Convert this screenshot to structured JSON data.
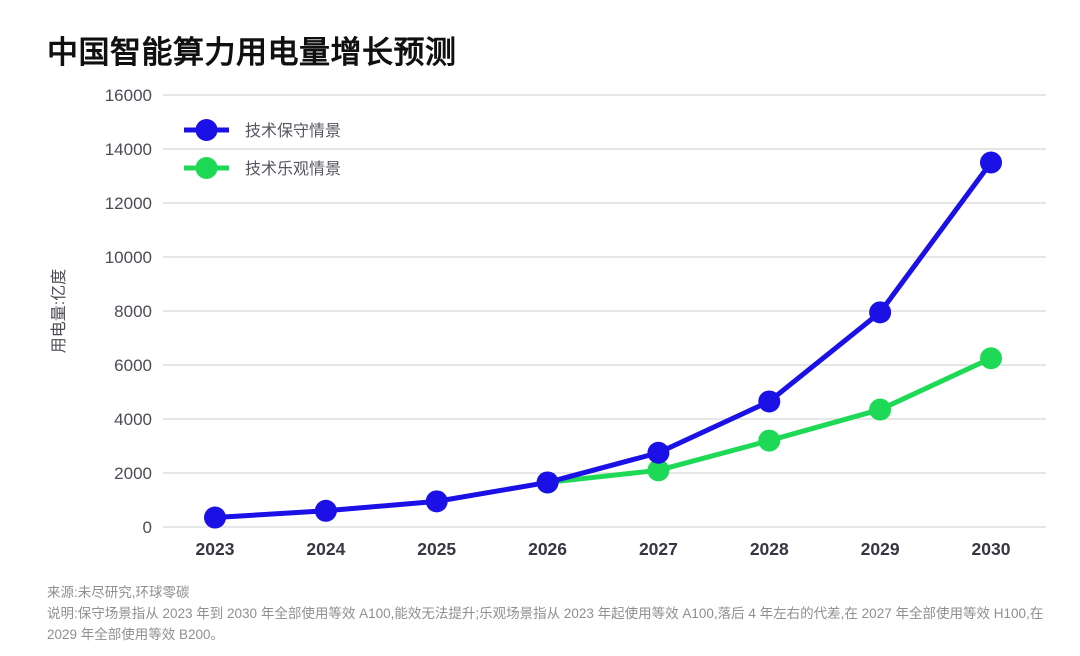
{
  "title": "中国智能算力用电量增长预测",
  "notes": {
    "source": "来源:未尽研究,环球零碳",
    "description": "说明:保守场景指从 2023 年到 2030 年全部使用等效 A100,能效无法提升;乐观场景指从 2023 年起使用等效 A100,落后 4 年左右的代差,在 2027 年全部使用等效 H100,在 2029 年全部使用等效 B200。"
  },
  "chart_data": {
    "type": "line",
    "title": "中国智能算力用电量增长预测",
    "categories": [
      "2023",
      "2024",
      "2025",
      "2026",
      "2027",
      "2028",
      "2029",
      "2030"
    ],
    "series": [
      {
        "key": "conservative",
        "name": "技术保守情景",
        "color": "#1b10e6",
        "values": [
          350,
          600,
          950,
          1650,
          2750,
          4650,
          7950,
          13500
        ]
      },
      {
        "key": "optimistic",
        "name": "技术乐观情景",
        "color": "#1ed955",
        "values": [
          null,
          null,
          null,
          1650,
          2100,
          3200,
          4350,
          6250
        ]
      }
    ],
    "xlabel": "",
    "ylabel": "用电量:亿度",
    "ylim": [
      0,
      16000
    ],
    "ytick_step": 2000,
    "yticks": [
      0,
      2000,
      4000,
      6000,
      8000,
      10000,
      12000,
      14000,
      16000
    ],
    "grid": true,
    "legend_position": "top-left"
  },
  "colors": {
    "background": "#ffffff",
    "grid": "#d8d8d8",
    "y_tick_text": "#4b4c56",
    "x_tick_text": "#363741",
    "legend_text": "#55565f",
    "note_text": "#8f8f8f",
    "title_text": "#101010",
    "series_conservative": "#1b10e6",
    "series_optimistic": "#1ed955"
  }
}
